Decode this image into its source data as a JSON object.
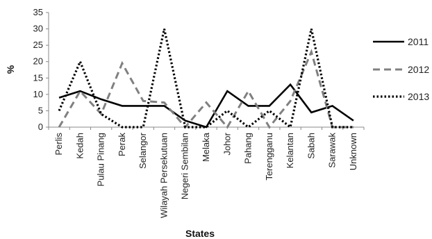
{
  "chart_data": {
    "type": "line",
    "xlabel": "States",
    "ylabel": "%",
    "ylim": [
      0,
      35
    ],
    "yticks": [
      "0",
      "5",
      "10",
      "15",
      "20",
      "25",
      "30",
      "35"
    ],
    "grid": false,
    "legend_position": "right",
    "categories": [
      "Perlis",
      "Kedah",
      "Pulau Pinang",
      "Perak",
      "Selangor",
      "Wilayah Persekutuan",
      "Negeri Sembilan",
      "Melaka",
      "Johor",
      "Pahang",
      "Terengganu",
      "Kelantan",
      "Sabah",
      "Sarawak",
      "Unknown"
    ],
    "series": [
      {
        "name": "2011",
        "style": "solid",
        "color": "#000000",
        "values": [
          9,
          11,
          8.5,
          6.5,
          6.5,
          6.5,
          2,
          0,
          11,
          6.5,
          6.5,
          13,
          4.5,
          6.5,
          2
        ]
      },
      {
        "name": "2012",
        "style": "dashed",
        "color": "#808080",
        "values": [
          0,
          11,
          4,
          19.5,
          8,
          7.5,
          0,
          7.5,
          0,
          11,
          0,
          8,
          23,
          0,
          0
        ]
      },
      {
        "name": "2013",
        "style": "dotted",
        "color": "#000000",
        "values": [
          5,
          20,
          4,
          0,
          0,
          30,
          0,
          0,
          5,
          0,
          5,
          0,
          30,
          0,
          0
        ]
      }
    ]
  }
}
